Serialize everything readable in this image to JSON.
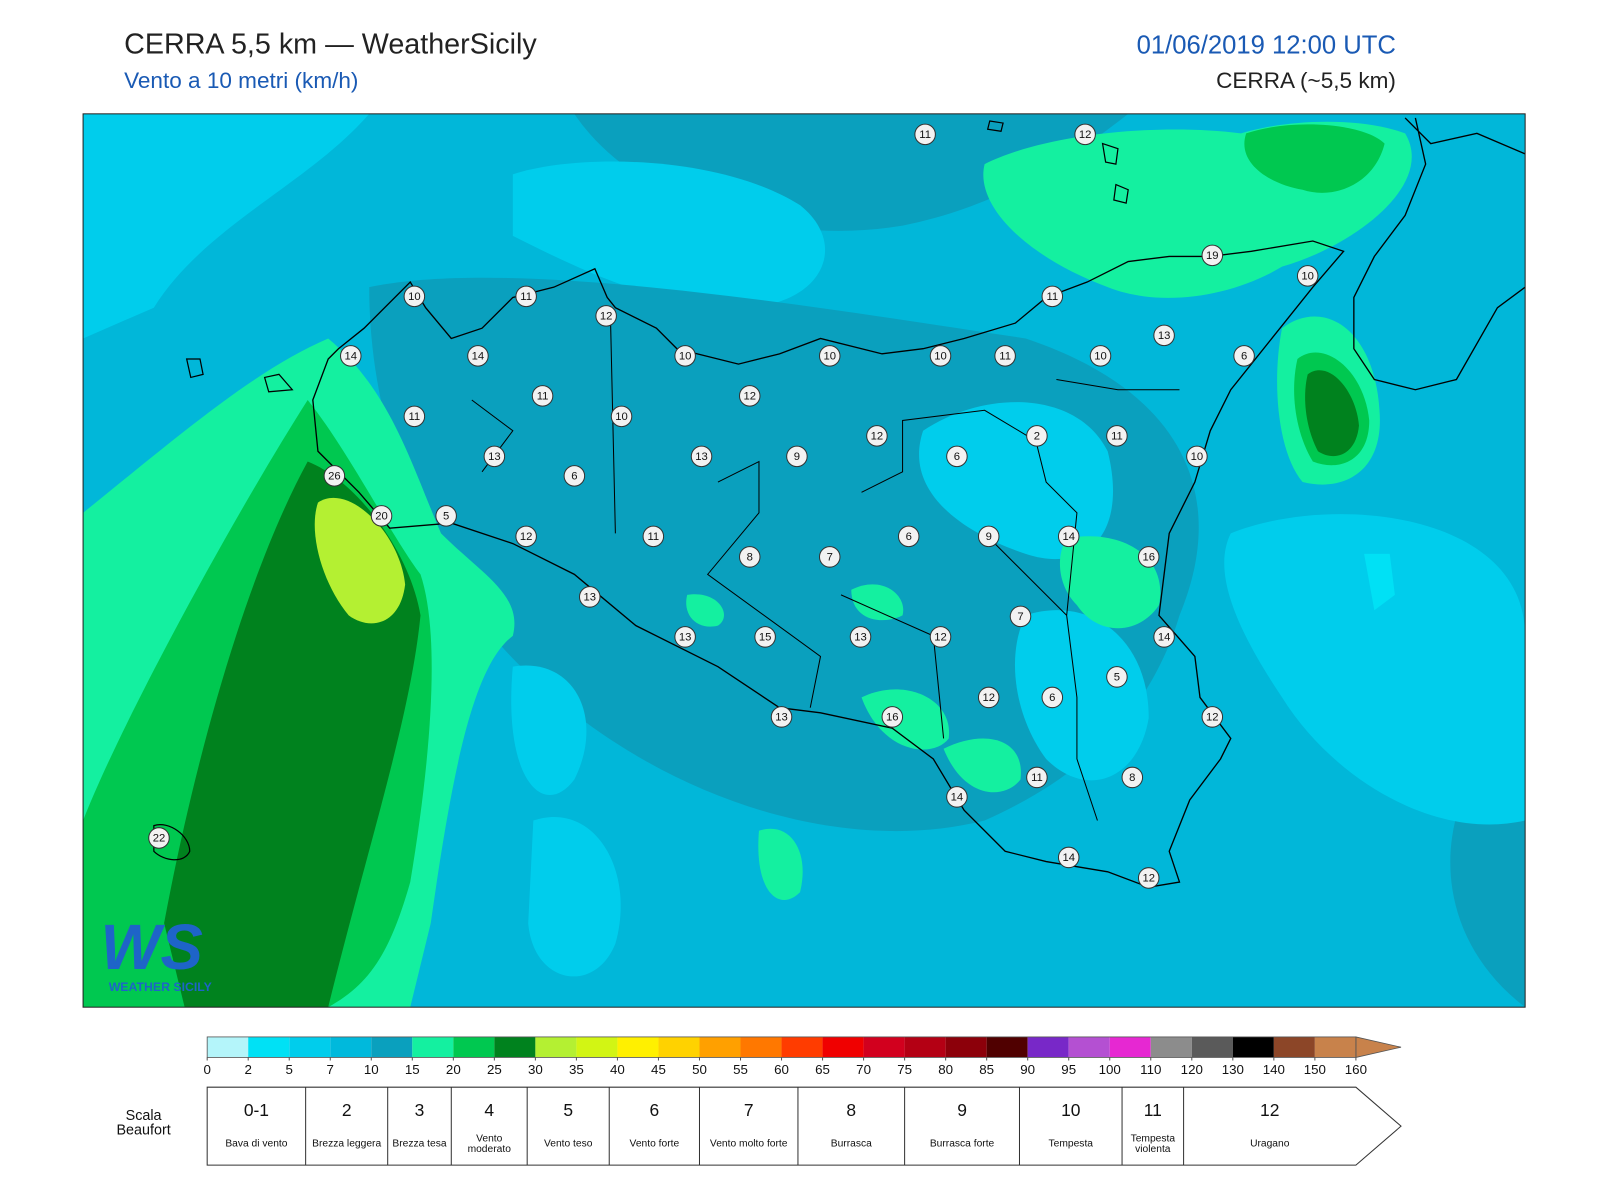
{
  "header": {
    "title": "CERRA 5,5 km — WeatherSicily",
    "subtitle": "Vento a 10 metri (km/h)",
    "datetime": "01/06/2019 12:00 UTC",
    "model": "CERRA (~5,5 km)"
  },
  "stations": [
    11,
    12,
    19,
    10,
    10,
    11,
    12,
    11,
    13,
    14,
    14,
    10,
    10,
    10,
    11,
    10,
    6,
    11,
    12,
    11,
    10,
    12,
    2,
    11,
    13,
    13,
    9,
    6,
    10,
    26,
    6,
    20,
    5,
    12,
    11,
    6,
    9,
    14,
    16,
    8,
    7,
    13,
    7,
    13,
    15,
    13,
    12,
    14,
    5,
    12,
    6,
    13,
    16,
    12,
    11,
    8,
    14,
    22,
    14,
    12
  ],
  "logo": {
    "mark": "WS",
    "name": "WEATHER SICILY"
  },
  "colorbar": {
    "ticks": [
      0,
      2,
      5,
      7,
      10,
      15,
      20,
      25,
      30,
      35,
      40,
      45,
      50,
      55,
      60,
      65,
      70,
      75,
      80,
      85,
      90,
      95,
      100,
      110,
      120,
      130,
      140,
      150,
      160
    ],
    "colors": [
      "#b4f5fa",
      "#00e1f5",
      "#00cdec",
      "#00b9dc",
      "#0aa0be",
      "#14f0a0",
      "#00c850",
      "#00821e",
      "#b4f032",
      "#d2f514",
      "#fff000",
      "#ffd200",
      "#ffa000",
      "#ff7800",
      "#ff3c00",
      "#f00000",
      "#d2001e",
      "#b40014",
      "#8c000a",
      "#500000",
      "#7828c8",
      "#b450d2",
      "#e628d2",
      "#8c8c8c",
      "#5a5a5a",
      "#000000",
      "#8c4628",
      "#c8824b"
    ]
  },
  "beaufort": {
    "label": "Scala Beaufort",
    "forces": [
      {
        "force": "0-1",
        "name": "Bava di vento"
      },
      {
        "force": "2",
        "name": "Brezza leggera"
      },
      {
        "force": "3",
        "name": "Brezza tesa"
      },
      {
        "force": "4",
        "name": "Vento moderato"
      },
      {
        "force": "5",
        "name": "Vento teso"
      },
      {
        "force": "6",
        "name": "Vento forte"
      },
      {
        "force": "7",
        "name": "Vento molto forte"
      },
      {
        "force": "8",
        "name": "Burrasca"
      },
      {
        "force": "9",
        "name": "Burrasca forte"
      },
      {
        "force": "10",
        "name": "Tempesta"
      },
      {
        "force": "11",
        "name": "Tempesta violenta"
      },
      {
        "force": "12",
        "name": "Uragano"
      }
    ]
  }
}
